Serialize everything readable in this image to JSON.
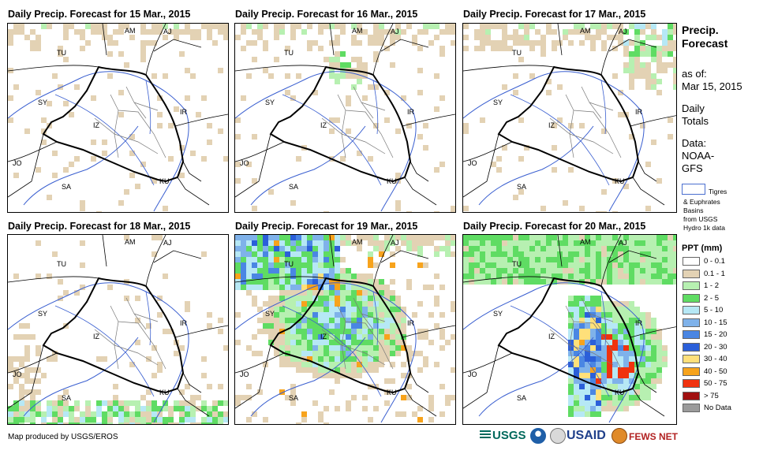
{
  "panels": [
    {
      "title": "Daily Precip. Forecast for 15 Mar., 2015",
      "day": 0
    },
    {
      "title": "Daily Precip. Forecast for 16 Mar., 2015",
      "day": 1
    },
    {
      "title": "Daily Precip. Forecast for 17 Mar., 2015",
      "day": 2
    },
    {
      "title": "Daily Precip. Forecast for 18 Mar., 2015",
      "day": 3
    },
    {
      "title": "Daily Precip. Forecast for 19 Mar., 2015",
      "day": 4
    },
    {
      "title": "Daily Precip. Forecast for 20 Mar., 2015",
      "day": 5
    }
  ],
  "map_labels": {
    "am": "AM",
    "aj": "AJ",
    "tu": "TU",
    "sy": "SY",
    "iz": "IZ",
    "ir": "IR",
    "jo": "JO",
    "sa": "SA",
    "ku": "KU"
  },
  "legend": {
    "title_line1": "Precip.",
    "title_line2": "Forecast",
    "asof_line1": "as of:",
    "asof_line2": "Mar 15, 2015",
    "daily_line1": "Daily",
    "daily_line2": "Totals",
    "data_line1": "Data:",
    "data_line2": "NOAA-",
    "data_line3": "GFS",
    "basin_line1": "Tigres",
    "basin_line2": "& Euphrates",
    "basin_line3": "Basins",
    "basin_line4": "from USGS",
    "basin_line5": "Hydro 1k data",
    "ppt_title": "PPT (mm)",
    "classes": [
      {
        "label": "0 - 0.1",
        "color": "#ffffff"
      },
      {
        "label": "0.1 - 1",
        "color": "#e3d2b4"
      },
      {
        "label": "1 - 2",
        "color": "#b7f0b1"
      },
      {
        "label": "2 - 5",
        "color": "#5fdc63"
      },
      {
        "label": "5 - 10",
        "color": "#b6e8f5"
      },
      {
        "label": "10 - 15",
        "color": "#7fb2ea"
      },
      {
        "label": "15 - 20",
        "color": "#4a86e3"
      },
      {
        "label": "20 - 30",
        "color": "#2b5fd9"
      },
      {
        "label": "30 - 40",
        "color": "#ffe07a"
      },
      {
        "label": "40 - 50",
        "color": "#f7a31c"
      },
      {
        "label": "50 - 75",
        "color": "#f0320f"
      },
      {
        "label": "> 75",
        "color": "#a11010"
      },
      {
        "label": "No Data",
        "color": "#9b9b9b"
      }
    ]
  },
  "footer": "Map produced by USGS/EROS",
  "logos": {
    "usgs": "USGS",
    "usaid": "USAID",
    "fews": "FEWS NET"
  }
}
